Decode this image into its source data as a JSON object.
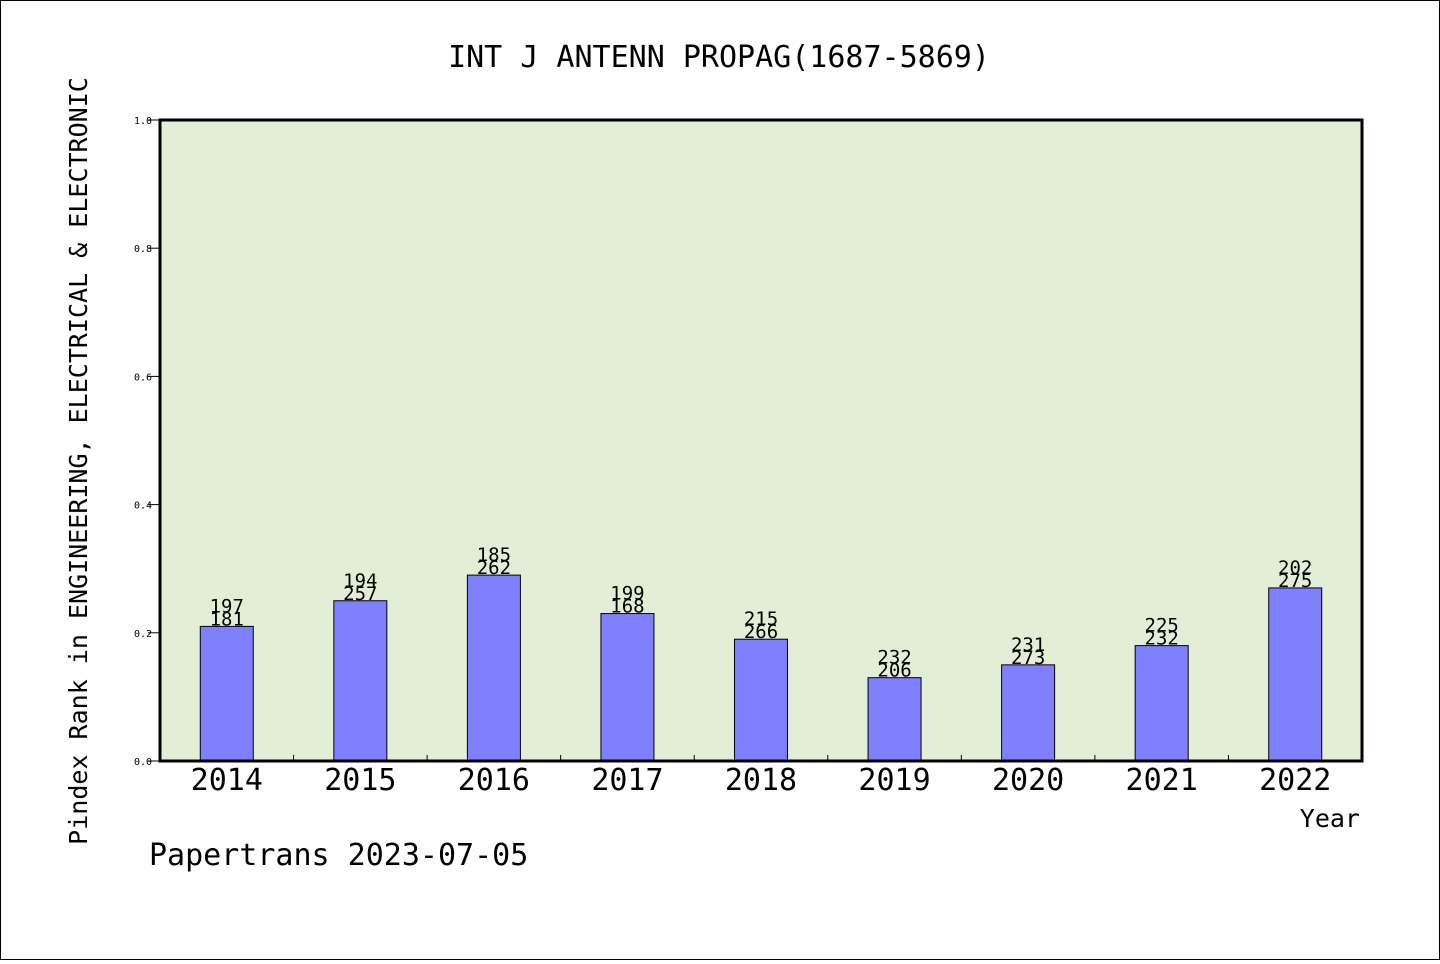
{
  "chart_data": {
    "type": "bar",
    "title": "INT J ANTENN PROPAG(1687-5869)",
    "xlabel": "Year",
    "ylabel": "Pindex Rank in ENGINEERING, ELECTRICAL & ELECTRONIC",
    "ylim": [
      0,
      1.0
    ],
    "yticks": [
      "0.0",
      "0.2",
      "0.4",
      "0.6",
      "0.8",
      "1.0"
    ],
    "grid": false,
    "categories": [
      "2014",
      "2015",
      "2016",
      "2017",
      "2018",
      "2019",
      "2020",
      "2021",
      "2022"
    ],
    "values": [
      0.21,
      0.25,
      0.29,
      0.23,
      0.19,
      0.13,
      0.15,
      0.18,
      0.27
    ],
    "label_top": [
      "197",
      "194",
      "185",
      "199",
      "215",
      "232",
      "231",
      "225",
      "202"
    ],
    "label_bottom": [
      "181",
      "257",
      "262",
      "168",
      "266",
      "206",
      "273",
      "232",
      "275"
    ],
    "bar_color": "#8080ff",
    "plot_bg": "#e2efd6"
  },
  "footer": "Papertrans 2023-07-05"
}
